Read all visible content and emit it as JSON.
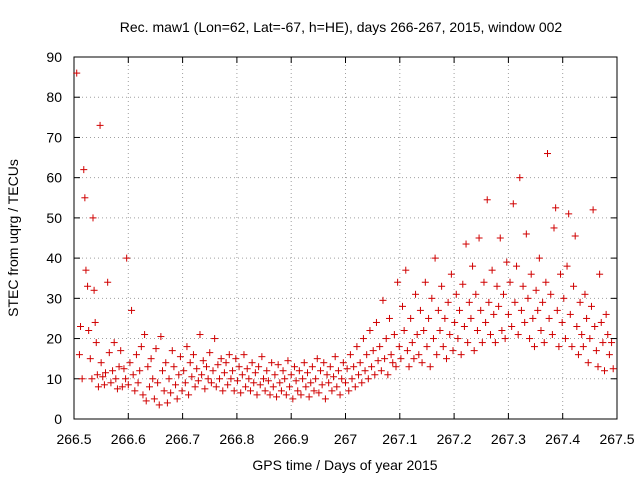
{
  "chart_data": {
    "type": "scatter",
    "title": "Rec. maw1 (Lon=62, Lat=-67, h=HE), days 266-267, 2015, window 002",
    "xlabel": "GPS time / Days of year 2015",
    "ylabel": "STEC from uqrg / TECUs",
    "xlim": [
      266.5,
      267.5
    ],
    "ylim": [
      0,
      90
    ],
    "xticks": [
      "266.5",
      "266.6",
      "266.7",
      "266.8",
      "266.9",
      "267",
      "267.1",
      "267.2",
      "267.3",
      "267.4",
      "267.5"
    ],
    "yticks": [
      "0",
      "10",
      "20",
      "30",
      "40",
      "50",
      "60",
      "70",
      "80",
      "90"
    ],
    "grid": true,
    "marker": "plus",
    "color": "#d00000",
    "points": [
      [
        266.505,
        86.0
      ],
      [
        266.51,
        16.0
      ],
      [
        266.512,
        23.0
      ],
      [
        266.515,
        10.0
      ],
      [
        266.518,
        62.0
      ],
      [
        266.52,
        55.0
      ],
      [
        266.522,
        37.0
      ],
      [
        266.525,
        33.0
      ],
      [
        266.527,
        22.0
      ],
      [
        266.53,
        15.0
      ],
      [
        266.533,
        10.0
      ],
      [
        266.535,
        50.0
      ],
      [
        266.537,
        32.0
      ],
      [
        266.539,
        24.0
      ],
      [
        266.541,
        19.0
      ],
      [
        266.543,
        11.0
      ],
      [
        266.545,
        8.0
      ],
      [
        266.548,
        73.0
      ],
      [
        266.55,
        14.0
      ],
      [
        266.553,
        10.5
      ],
      [
        266.556,
        8.5
      ],
      [
        266.558,
        11.5
      ],
      [
        266.562,
        34.0
      ],
      [
        266.565,
        16.5
      ],
      [
        266.568,
        9.0
      ],
      [
        266.571,
        12.0
      ],
      [
        266.574,
        19.0
      ],
      [
        266.577,
        10.0
      ],
      [
        266.58,
        7.5
      ],
      [
        266.583,
        13.0
      ],
      [
        266.586,
        17.0
      ],
      [
        266.589,
        8.0
      ],
      [
        266.592,
        12.5
      ],
      [
        266.595,
        10.0
      ],
      [
        266.597,
        40.0
      ],
      [
        266.6,
        8.5
      ],
      [
        266.603,
        14.0
      ],
      [
        266.606,
        27.0
      ],
      [
        266.609,
        11.0
      ],
      [
        266.612,
        7.0
      ],
      [
        266.615,
        16.0
      ],
      [
        266.618,
        9.0
      ],
      [
        266.621,
        12.0
      ],
      [
        266.624,
        18.0
      ],
      [
        266.627,
        6.0
      ],
      [
        266.63,
        21.0
      ],
      [
        266.633,
        4.5
      ],
      [
        266.636,
        13.0
      ],
      [
        266.639,
        8.0
      ],
      [
        266.642,
        15.0
      ],
      [
        266.645,
        10.0
      ],
      [
        266.648,
        5.0
      ],
      [
        266.651,
        17.5
      ],
      [
        266.654,
        9.0
      ],
      [
        266.657,
        3.5
      ],
      [
        266.66,
        20.5
      ],
      [
        266.663,
        12.0
      ],
      [
        266.666,
        7.0
      ],
      [
        266.669,
        14.0
      ],
      [
        266.672,
        4.0
      ],
      [
        266.675,
        10.0
      ],
      [
        266.678,
        6.5
      ],
      [
        266.681,
        17.0
      ],
      [
        266.684,
        13.0
      ],
      [
        266.687,
        8.5
      ],
      [
        266.69,
        5.0
      ],
      [
        266.693,
        11.0
      ],
      [
        266.696,
        15.5
      ],
      [
        266.699,
        7.0
      ],
      [
        266.702,
        12.0
      ],
      [
        266.705,
        9.0
      ],
      [
        266.708,
        18.0
      ],
      [
        266.711,
        6.0
      ],
      [
        266.714,
        14.0
      ],
      [
        266.717,
        10.5
      ],
      [
        266.72,
        16.0
      ],
      [
        266.723,
        8.0
      ],
      [
        266.726,
        12.5
      ],
      [
        266.729,
        9.5
      ],
      [
        266.732,
        21.0
      ],
      [
        266.735,
        11.0
      ],
      [
        266.738,
        14.5
      ],
      [
        266.741,
        7.5
      ],
      [
        266.744,
        13.0
      ],
      [
        266.747,
        10.0
      ],
      [
        266.75,
        16.5
      ],
      [
        266.753,
        9.0
      ],
      [
        266.756,
        12.0
      ],
      [
        266.759,
        20.0
      ],
      [
        266.762,
        8.0
      ],
      [
        266.765,
        13.5
      ],
      [
        266.768,
        10.0
      ],
      [
        266.771,
        15.0
      ],
      [
        266.774,
        7.0
      ],
      [
        266.777,
        11.5
      ],
      [
        266.78,
        14.0
      ],
      [
        266.783,
        8.5
      ],
      [
        266.786,
        16.0
      ],
      [
        266.789,
        10.0
      ],
      [
        266.792,
        12.0
      ],
      [
        266.795,
        7.0
      ],
      [
        266.798,
        15.0
      ],
      [
        266.801,
        9.5
      ],
      [
        266.804,
        13.0
      ],
      [
        266.807,
        6.5
      ],
      [
        266.81,
        11.0
      ],
      [
        266.813,
        16.0
      ],
      [
        266.816,
        8.0
      ],
      [
        266.819,
        12.5
      ],
      [
        266.822,
        10.0
      ],
      [
        266.825,
        7.0
      ],
      [
        266.828,
        14.0
      ],
      [
        266.831,
        9.0
      ],
      [
        266.834,
        11.5
      ],
      [
        266.837,
        6.0
      ],
      [
        266.84,
        13.0
      ],
      [
        266.843,
        8.5
      ],
      [
        266.846,
        15.5
      ],
      [
        266.849,
        10.0
      ],
      [
        266.852,
        7.0
      ],
      [
        266.855,
        12.0
      ],
      [
        266.858,
        9.5
      ],
      [
        266.861,
        6.0
      ],
      [
        266.864,
        14.0
      ],
      [
        266.867,
        8.0
      ],
      [
        266.87,
        11.0
      ],
      [
        266.873,
        5.5
      ],
      [
        266.876,
        13.5
      ],
      [
        266.879,
        9.0
      ],
      [
        266.882,
        7.0
      ],
      [
        266.885,
        12.0
      ],
      [
        266.888,
        10.0
      ],
      [
        266.891,
        6.0
      ],
      [
        266.894,
        14.5
      ],
      [
        266.897,
        8.0
      ],
      [
        266.9,
        11.0
      ],
      [
        266.903,
        5.0
      ],
      [
        266.906,
        13.0
      ],
      [
        266.909,
        9.5
      ],
      [
        266.912,
        7.0
      ],
      [
        266.915,
        12.0
      ],
      [
        266.918,
        6.0
      ],
      [
        266.921,
        10.0
      ],
      [
        266.924,
        14.0
      ],
      [
        266.927,
        8.0
      ],
      [
        266.93,
        11.5
      ],
      [
        266.933,
        5.5
      ],
      [
        266.936,
        9.0
      ],
      [
        266.939,
        13.0
      ],
      [
        266.942,
        7.0
      ],
      [
        266.945,
        10.0
      ],
      [
        266.948,
        15.0
      ],
      [
        266.951,
        6.5
      ],
      [
        266.954,
        12.0
      ],
      [
        266.957,
        8.5
      ],
      [
        266.96,
        14.0
      ],
      [
        266.963,
        5.0
      ],
      [
        266.966,
        11.0
      ],
      [
        266.969,
        9.0
      ],
      [
        266.972,
        13.0
      ],
      [
        266.975,
        7.0
      ],
      [
        266.978,
        10.5
      ],
      [
        266.981,
        15.5
      ],
      [
        266.984,
        8.0
      ],
      [
        266.987,
        12.0
      ],
      [
        266.99,
        6.0
      ],
      [
        266.993,
        10.0
      ],
      [
        266.996,
        14.0
      ],
      [
        267.0,
        9.0
      ],
      [
        267.003,
        12.5
      ],
      [
        267.006,
        7.0
      ],
      [
        267.009,
        16.0
      ],
      [
        267.012,
        10.0
      ],
      [
        267.015,
        13.0
      ],
      [
        267.018,
        8.0
      ],
      [
        267.021,
        18.0
      ],
      [
        267.024,
        11.0
      ],
      [
        267.027,
        14.0
      ],
      [
        267.03,
        9.0
      ],
      [
        267.033,
        20.0
      ],
      [
        267.036,
        12.0
      ],
      [
        267.039,
        16.0
      ],
      [
        267.042,
        10.0
      ],
      [
        267.045,
        22.0
      ],
      [
        267.048,
        13.0
      ],
      [
        267.051,
        17.0
      ],
      [
        267.054,
        11.0
      ],
      [
        267.057,
        24.0
      ],
      [
        267.06,
        14.5
      ],
      [
        267.063,
        18.0
      ],
      [
        267.066,
        12.0
      ],
      [
        267.069,
        29.5
      ],
      [
        267.072,
        15.0
      ],
      [
        267.075,
        20.0
      ],
      [
        267.078,
        11.0
      ],
      [
        267.081,
        25.0
      ],
      [
        267.084,
        16.0
      ],
      [
        267.087,
        14.0
      ],
      [
        267.09,
        21.0
      ],
      [
        267.093,
        13.0
      ],
      [
        267.096,
        34.0
      ],
      [
        267.099,
        18.0
      ],
      [
        267.102,
        15.0
      ],
      [
        267.105,
        28.0
      ],
      [
        267.108,
        22.0
      ],
      [
        267.111,
        37.0
      ],
      [
        267.114,
        17.0
      ],
      [
        267.117,
        13.0
      ],
      [
        267.12,
        25.0
      ],
      [
        267.123,
        19.0
      ],
      [
        267.126,
        15.0
      ],
      [
        267.129,
        31.0
      ],
      [
        267.132,
        21.0
      ],
      [
        267.135,
        16.0
      ],
      [
        267.138,
        27.0
      ],
      [
        267.141,
        14.0
      ],
      [
        267.144,
        22.0
      ],
      [
        267.147,
        34.0
      ],
      [
        267.15,
        18.0
      ],
      [
        267.153,
        25.0
      ],
      [
        267.156,
        13.0
      ],
      [
        267.159,
        30.0
      ],
      [
        267.162,
        20.0
      ],
      [
        267.165,
        40.0
      ],
      [
        267.168,
        16.0
      ],
      [
        267.171,
        27.0
      ],
      [
        267.174,
        22.0
      ],
      [
        267.177,
        33.0
      ],
      [
        267.18,
        18.0
      ],
      [
        267.183,
        25.0
      ],
      [
        267.186,
        15.0
      ],
      [
        267.189,
        29.0
      ],
      [
        267.192,
        21.0
      ],
      [
        267.195,
        36.0
      ],
      [
        267.198,
        17.0
      ],
      [
        267.201,
        24.0
      ],
      [
        267.204,
        31.0
      ],
      [
        267.207,
        20.0
      ],
      [
        267.21,
        27.0
      ],
      [
        267.213,
        16.0
      ],
      [
        267.216,
        33.5
      ],
      [
        267.219,
        23.0
      ],
      [
        267.222,
        43.5
      ],
      [
        267.225,
        19.0
      ],
      [
        267.228,
        29.0
      ],
      [
        267.231,
        25.0
      ],
      [
        267.234,
        38.0
      ],
      [
        267.237,
        17.0
      ],
      [
        267.24,
        31.0
      ],
      [
        267.243,
        22.0
      ],
      [
        267.246,
        45.0
      ],
      [
        267.249,
        27.0
      ],
      [
        267.252,
        19.0
      ],
      [
        267.255,
        34.0
      ],
      [
        267.258,
        24.0
      ],
      [
        267.261,
        54.5
      ],
      [
        267.264,
        29.0
      ],
      [
        267.267,
        21.0
      ],
      [
        267.27,
        37.0
      ],
      [
        267.273,
        26.0
      ],
      [
        267.276,
        19.0
      ],
      [
        267.279,
        33.0
      ],
      [
        267.282,
        28.0
      ],
      [
        267.285,
        45.0
      ],
      [
        267.288,
        22.0
      ],
      [
        267.291,
        31.0
      ],
      [
        267.294,
        20.0
      ],
      [
        267.297,
        39.0
      ],
      [
        267.3,
        26.0
      ],
      [
        267.303,
        34.0
      ],
      [
        267.306,
        23.0
      ],
      [
        267.309,
        53.5
      ],
      [
        267.312,
        29.0
      ],
      [
        267.315,
        38.0
      ],
      [
        267.318,
        21.0
      ],
      [
        267.321,
        60.0
      ],
      [
        267.324,
        27.0
      ],
      [
        267.327,
        33.0
      ],
      [
        267.33,
        24.0
      ],
      [
        267.333,
        46.0
      ],
      [
        267.336,
        30.0
      ],
      [
        267.339,
        20.0
      ],
      [
        267.342,
        36.0
      ],
      [
        267.345,
        25.0
      ],
      [
        267.348,
        18.0
      ],
      [
        267.351,
        32.0
      ],
      [
        267.354,
        27.0
      ],
      [
        267.357,
        40.0
      ],
      [
        267.36,
        22.0
      ],
      [
        267.363,
        29.0
      ],
      [
        267.366,
        19.0
      ],
      [
        267.369,
        34.0
      ],
      [
        267.372,
        66.0
      ],
      [
        267.375,
        25.0
      ],
      [
        267.378,
        31.0
      ],
      [
        267.381,
        21.0
      ],
      [
        267.384,
        47.5
      ],
      [
        267.387,
        52.5
      ],
      [
        267.39,
        27.0
      ],
      [
        267.393,
        18.0
      ],
      [
        267.396,
        36.0
      ],
      [
        267.399,
        24.0
      ],
      [
        267.402,
        30.0
      ],
      [
        267.405,
        20.0
      ],
      [
        267.408,
        38.0
      ],
      [
        267.411,
        51.0
      ],
      [
        267.414,
        26.0
      ],
      [
        267.417,
        18.0
      ],
      [
        267.42,
        33.0
      ],
      [
        267.423,
        45.5
      ],
      [
        267.426,
        23.0
      ],
      [
        267.429,
        16.0
      ],
      [
        267.432,
        29.0
      ],
      [
        267.435,
        21.0
      ],
      [
        267.438,
        18.0
      ],
      [
        267.441,
        31.0
      ],
      [
        267.444,
        25.0
      ],
      [
        267.447,
        14.0
      ],
      [
        267.45,
        20.0
      ],
      [
        267.453,
        28.0
      ],
      [
        267.456,
        52.0
      ],
      [
        267.459,
        23.0
      ],
      [
        267.462,
        17.0
      ],
      [
        267.465,
        13.0
      ],
      [
        267.468,
        36.0
      ],
      [
        267.471,
        24.0
      ],
      [
        267.474,
        19.0
      ],
      [
        267.477,
        12.0
      ],
      [
        267.48,
        26.0
      ],
      [
        267.483,
        21.0
      ],
      [
        267.486,
        16.0
      ],
      [
        267.49,
        19.0
      ],
      [
        267.493,
        12.5
      ]
    ]
  }
}
